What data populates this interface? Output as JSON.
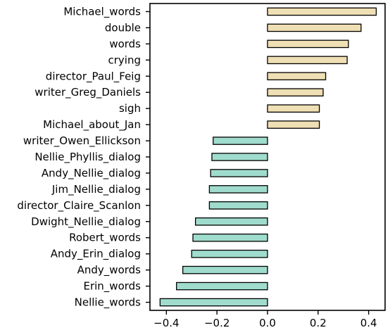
{
  "chart_data": {
    "type": "bar",
    "orientation": "horizontal",
    "categories": [
      "Michael_words",
      "double",
      "words",
      "crying",
      "director_Paul_Feig",
      "writer_Greg_Daniels",
      "sigh",
      "Michael_about_Jan",
      "writer_Owen_Ellickson",
      "Nellie_Phyllis_dialog",
      "Andy_Nellie_dialog",
      "Jim_Nellie_dialog",
      "director_Claire_Scanlon",
      "Dwight_Nellie_dialog",
      "Robert_words",
      "Andy_Erin_dialog",
      "Andy_words",
      "Erin_words",
      "Nellie_words"
    ],
    "values": [
      0.43,
      0.37,
      0.32,
      0.315,
      0.23,
      0.22,
      0.205,
      0.205,
      -0.215,
      -0.22,
      -0.225,
      -0.23,
      -0.23,
      -0.285,
      -0.295,
      -0.3,
      -0.335,
      -0.36,
      -0.425
    ],
    "xlim": [
      -0.465,
      0.465
    ],
    "xticks": [
      -0.4,
      -0.2,
      0.0,
      0.2,
      0.4
    ],
    "xtick_labels": [
      "−0.4",
      "−0.2",
      "0.0",
      "0.2",
      "0.4"
    ],
    "title": "",
    "xlabel": "",
    "ylabel": "",
    "grid": false,
    "colors": {
      "positive": "#efdfb4",
      "negative": "#9fdccd",
      "edge": "#000000"
    }
  }
}
